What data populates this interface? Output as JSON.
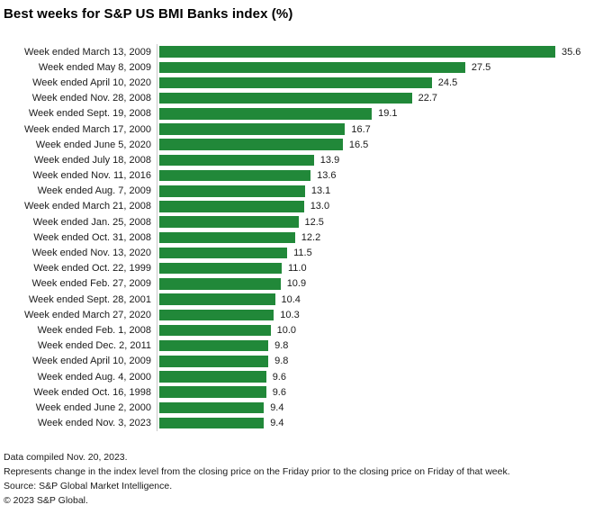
{
  "title": "Best weeks for S&P US BMI Banks index (%)",
  "chart_data": {
    "type": "bar",
    "orientation": "horizontal",
    "title": "Best weeks for S&P US BMI Banks index (%)",
    "xlabel": "",
    "ylabel": "",
    "xlim": [
      0,
      35.6
    ],
    "grid": false,
    "legend": "none",
    "bar_color": "#218839",
    "axis_line_color": "#c9c9c9",
    "categories": [
      "Week ended March 13, 2009",
      "Week ended May 8, 2009",
      "Week ended April 10, 2020",
      "Week ended Nov. 28, 2008",
      "Week ended Sept. 19, 2008",
      "Week ended March 17, 2000",
      "Week ended June 5, 2020",
      "Week ended July 18, 2008",
      "Week ended Nov. 11, 2016",
      "Week ended Aug. 7, 2009",
      "Week ended March 21, 2008",
      "Week ended Jan. 25, 2008",
      "Week ended Oct. 31, 2008",
      "Week ended Nov. 13, 2020",
      "Week ended Oct. 22, 1999",
      "Week ended Feb. 27, 2009",
      "Week ended Sept. 28, 2001",
      "Week ended March 27, 2020",
      "Week ended Feb. 1, 2008",
      "Week ended Dec. 2, 2011",
      "Week ended April 10, 2009",
      "Week ended Aug. 4, 2000",
      "Week ended Oct. 16, 1998",
      "Week ended June 2, 2000",
      "Week ended Nov. 3, 2023"
    ],
    "values": [
      35.6,
      27.5,
      24.5,
      22.7,
      19.1,
      16.7,
      16.5,
      13.9,
      13.6,
      13.1,
      13.0,
      12.5,
      12.2,
      11.5,
      11.0,
      10.9,
      10.4,
      10.3,
      10.0,
      9.8,
      9.8,
      9.6,
      9.6,
      9.4,
      9.4
    ]
  },
  "footer": {
    "lines": [
      "Data compiled Nov. 20, 2023.",
      "Represents change in the index level from the closing price on the Friday prior to the closing price on Friday of that week.",
      "Source: S&P Global Market Intelligence.",
      "© 2023 S&P Global."
    ]
  }
}
